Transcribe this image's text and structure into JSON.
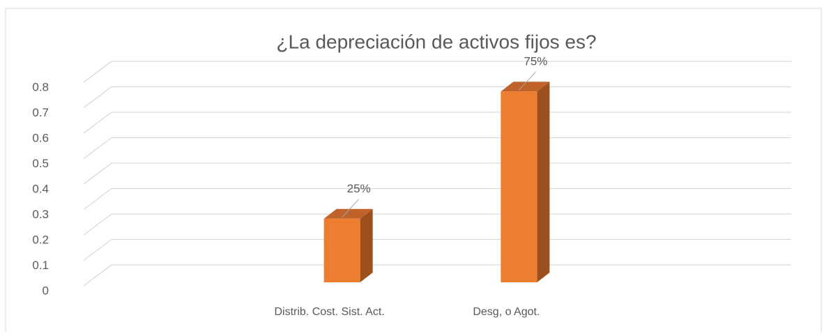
{
  "chart_data": {
    "type": "bar3d",
    "title": "¿La depreciación de activos fijos es?",
    "categories": [
      null,
      "Distrib. Cost. Sist. Act.",
      "Desg, o Agot.",
      null
    ],
    "values": [
      null,
      0.25,
      0.75,
      null
    ],
    "value_labels": [
      null,
      "25%",
      "75%",
      null
    ],
    "color": "#ED7D31",
    "ylim": [
      0,
      0.8
    ],
    "yticks": [
      0,
      0.1,
      0.2,
      0.3,
      0.4,
      0.5,
      0.6,
      0.7,
      0.8
    ],
    "grid": true
  }
}
